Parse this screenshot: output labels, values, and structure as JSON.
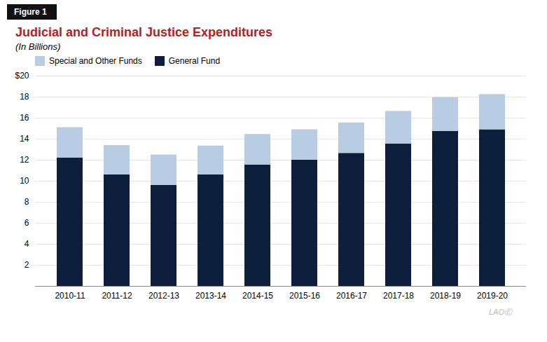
{
  "chart_data": {
    "type": "bar",
    "stacked": true,
    "title": "Judicial and Criminal Justice Expenditures",
    "subtitle": "(In Billions)",
    "annotations": [
      "Figure 1",
      "LAOⒺ"
    ],
    "categories": [
      "2010-11",
      "2011-12",
      "2012-13",
      "2013-14",
      "2014-15",
      "2015-16",
      "2016-17",
      "2017-18",
      "2018-19",
      "2019-20"
    ],
    "series": [
      {
        "name": "General Fund",
        "color": "#0d1f3c",
        "values": [
          12.2,
          10.6,
          9.6,
          10.6,
          11.55,
          12.0,
          12.65,
          13.55,
          14.75,
          14.9
        ]
      },
      {
        "name": "Special and Other Funds",
        "color": "#b8cce4",
        "values": [
          2.9,
          2.8,
          2.9,
          2.75,
          2.9,
          2.9,
          2.9,
          3.1,
          3.2,
          3.35
        ]
      }
    ],
    "ylim": [
      0,
      20
    ],
    "yticks": [
      2,
      4,
      6,
      8,
      10,
      12,
      14,
      16,
      18,
      {
        "value": 20,
        "label": "$20"
      }
    ],
    "grid": true,
    "legend": "upper left"
  }
}
